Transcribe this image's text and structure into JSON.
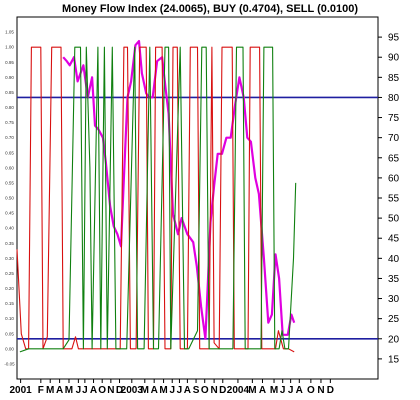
{
  "chart_data": {
    "type": "line",
    "title": "Money Flow Index (24.0065), BUY (0.4704), SELL (0.0100)",
    "y_right": {
      "range": [
        10,
        100
      ],
      "ticks": [
        "15",
        "20",
        "25",
        "30",
        "35",
        "40",
        "45",
        "50",
        "55",
        "60",
        "65",
        "70",
        "75",
        "80",
        "85",
        "90",
        "95"
      ]
    },
    "y_left": {
      "range": [
        -0.1,
        1.1
      ],
      "ticks": [
        "-0.05",
        "0.00",
        "0.05",
        "0.10",
        "0.15",
        "0.20",
        "0.25",
        "0.30",
        "0.35",
        "0.40",
        "0.45",
        "0.50",
        "0.55",
        "0.60",
        "0.65",
        "0.70",
        "0.75",
        "0.80",
        "0.85",
        "0.90",
        "0.95",
        "1.00",
        "1.05"
      ]
    },
    "x_axis": {
      "range": [
        0,
        50
      ],
      "ticks": [
        {
          "x": 0.5,
          "label": "2001"
        },
        {
          "x": 3.3,
          "label": "F"
        },
        {
          "x": 4.6,
          "label": "M"
        },
        {
          "x": 5.9,
          "label": "A"
        },
        {
          "x": 7.2,
          "label": "M"
        },
        {
          "x": 8.5,
          "label": "J"
        },
        {
          "x": 9.4,
          "label": "J"
        },
        {
          "x": 10.6,
          "label": "A"
        },
        {
          "x": 11.8,
          "label": "O"
        },
        {
          "x": 13.0,
          "label": "N"
        },
        {
          "x": 14.2,
          "label": "D"
        },
        {
          "x": 15.9,
          "label": "2003"
        },
        {
          "x": 17.7,
          "label": "M"
        },
        {
          "x": 19.0,
          "label": "A"
        },
        {
          "x": 20.3,
          "label": "M"
        },
        {
          "x": 21.5,
          "label": "J"
        },
        {
          "x": 22.5,
          "label": "J"
        },
        {
          "x": 23.6,
          "label": "A"
        },
        {
          "x": 24.8,
          "label": "S"
        },
        {
          "x": 26.0,
          "label": "O"
        },
        {
          "x": 27.3,
          "label": "N"
        },
        {
          "x": 28.5,
          "label": "D"
        },
        {
          "x": 30.6,
          "label": "2004"
        },
        {
          "x": 32.6,
          "label": "M"
        },
        {
          "x": 34.0,
          "label": "A"
        },
        {
          "x": 35.6,
          "label": "M"
        },
        {
          "x": 36.8,
          "label": "J"
        },
        {
          "x": 37.9,
          "label": "J"
        },
        {
          "x": 39.1,
          "label": "A"
        },
        {
          "x": 40.7,
          "label": "O"
        },
        {
          "x": 42.1,
          "label": "N"
        },
        {
          "x": 43.4,
          "label": "D"
        }
      ]
    },
    "reference_lines": [
      {
        "axis": "right",
        "value": 80,
        "color": "#1f1fa0"
      },
      {
        "axis": "right",
        "value": 20,
        "color": "#1f1fa0"
      }
    ],
    "grid": false,
    "series": [
      {
        "axis": "right",
        "color": "#e000e0",
        "points": [
          [
            6.4,
            90
          ],
          [
            6.9,
            89
          ],
          [
            7.3,
            88
          ],
          [
            7.9,
            90
          ],
          [
            8.4,
            84
          ],
          [
            9.2,
            88
          ],
          [
            9.8,
            80
          ],
          [
            10.4,
            85
          ],
          [
            10.8,
            73
          ],
          [
            11.3,
            72
          ],
          [
            11.9,
            70
          ],
          [
            12.3,
            64
          ],
          [
            12.9,
            53
          ],
          [
            13.4,
            48
          ],
          [
            13.9,
            46
          ],
          [
            14.4,
            43
          ],
          [
            14.8,
            60
          ],
          [
            15.3,
            80
          ],
          [
            15.8,
            84
          ],
          [
            16.4,
            93
          ],
          [
            16.9,
            94
          ],
          [
            17.3,
            86
          ],
          [
            17.9,
            81
          ],
          [
            18.3,
            80
          ],
          [
            18.8,
            80
          ],
          [
            19.4,
            89
          ],
          [
            20.1,
            90
          ],
          [
            20.6,
            82
          ],
          [
            21.0,
            76
          ],
          [
            21.6,
            51
          ],
          [
            22.3,
            46
          ],
          [
            22.8,
            50
          ],
          [
            23.6,
            46
          ],
          [
            24.4,
            44
          ],
          [
            24.9,
            38
          ],
          [
            25.5,
            28
          ],
          [
            26.1,
            20
          ],
          [
            26.8,
            49
          ],
          [
            27.3,
            58
          ],
          [
            27.8,
            66
          ],
          [
            28.4,
            66
          ],
          [
            29.0,
            70
          ],
          [
            29.6,
            70
          ],
          [
            30.2,
            78
          ],
          [
            30.8,
            85
          ],
          [
            31.4,
            80
          ],
          [
            31.9,
            70
          ],
          [
            32.4,
            69
          ],
          [
            33.0,
            60
          ],
          [
            33.5,
            56
          ],
          [
            34.2,
            40
          ],
          [
            34.8,
            24
          ],
          [
            35.3,
            26
          ],
          [
            35.8,
            41
          ],
          [
            36.3,
            35
          ],
          [
            36.8,
            21
          ],
          [
            37.5,
            21
          ],
          [
            38.0,
            26
          ],
          [
            38.4,
            24
          ]
        ]
      },
      {
        "axis": "left",
        "color": "#d81010",
        "points": [
          [
            0.0,
            0.33
          ],
          [
            0.6,
            0.05
          ],
          [
            1.2,
            0.0
          ],
          [
            1.6,
            0.0
          ],
          [
            2.0,
            1.0
          ],
          [
            3.3,
            1.0
          ],
          [
            3.6,
            0.0
          ],
          [
            4.2,
            0.04
          ],
          [
            4.8,
            1.0
          ],
          [
            6.1,
            1.0
          ],
          [
            6.4,
            0.0
          ],
          [
            7.6,
            0.0
          ],
          [
            8.1,
            0.04
          ],
          [
            8.5,
            0.0
          ],
          [
            10.4,
            0.0
          ],
          [
            10.9,
            0.0
          ],
          [
            12.4,
            0.0
          ],
          [
            12.9,
            0.0
          ],
          [
            13.8,
            0.0
          ],
          [
            14.3,
            0.0
          ],
          [
            14.8,
            1.0
          ],
          [
            15.3,
            1.0
          ],
          [
            15.7,
            0.0
          ],
          [
            16.5,
            0.0
          ],
          [
            17.0,
            1.0
          ],
          [
            17.9,
            1.0
          ],
          [
            18.2,
            0.0
          ],
          [
            18.9,
            0.0
          ],
          [
            19.2,
            1.0
          ],
          [
            20.1,
            1.0
          ],
          [
            20.5,
            0.0
          ],
          [
            21.3,
            0.0
          ],
          [
            21.6,
            1.0
          ],
          [
            22.2,
            1.0
          ],
          [
            22.6,
            0.0
          ],
          [
            23.6,
            0.0
          ],
          [
            24.0,
            1.0
          ],
          [
            25.0,
            1.0
          ],
          [
            25.3,
            0.0
          ],
          [
            26.6,
            0.0
          ],
          [
            27.0,
            1.0
          ],
          [
            27.3,
            0.02
          ],
          [
            28.0,
            0.0
          ],
          [
            28.4,
            1.0
          ],
          [
            29.8,
            1.0
          ],
          [
            30.1,
            0.0
          ],
          [
            32.0,
            0.0
          ],
          [
            32.3,
            1.0
          ],
          [
            33.6,
            1.0
          ],
          [
            33.9,
            0.0
          ],
          [
            35.8,
            0.0
          ],
          [
            36.2,
            0.06
          ],
          [
            36.9,
            0.0
          ],
          [
            37.3,
            0.0
          ],
          [
            37.6,
            0.0
          ],
          [
            38.4,
            -0.01
          ]
        ]
      },
      {
        "axis": "left",
        "color": "#108010",
        "points": [
          [
            0.4,
            -0.01
          ],
          [
            1.6,
            0.0
          ],
          [
            3.3,
            0.0
          ],
          [
            3.6,
            0.0
          ],
          [
            4.5,
            0.0
          ],
          [
            6.4,
            0.0
          ],
          [
            7.2,
            0.03
          ],
          [
            8.0,
            1.0
          ],
          [
            8.8,
            1.0
          ],
          [
            9.2,
            0.0
          ],
          [
            9.6,
            1.0
          ],
          [
            10.1,
            0.6
          ],
          [
            10.4,
            0.0
          ],
          [
            11.2,
            1.0
          ],
          [
            11.6,
            0.0
          ],
          [
            12.1,
            1.0
          ],
          [
            12.5,
            0.0
          ],
          [
            13.2,
            1.0
          ],
          [
            13.7,
            0.0
          ],
          [
            14.4,
            0.0
          ],
          [
            15.2,
            0.0
          ],
          [
            16.3,
            1.0
          ],
          [
            16.7,
            0.0
          ],
          [
            17.6,
            0.0
          ],
          [
            18.4,
            1.0
          ],
          [
            18.9,
            0.0
          ],
          [
            19.6,
            0.0
          ],
          [
            20.5,
            1.0
          ],
          [
            21.0,
            1.0
          ],
          [
            21.3,
            0.0
          ],
          [
            22.6,
            1.0
          ],
          [
            23.2,
            0.0
          ],
          [
            23.8,
            0.0
          ],
          [
            25.0,
            0.06
          ],
          [
            25.6,
            1.0
          ],
          [
            26.2,
            1.0
          ],
          [
            26.6,
            0.0
          ],
          [
            27.6,
            0.0
          ],
          [
            28.4,
            0.0
          ],
          [
            29.9,
            0.0
          ],
          [
            30.4,
            1.0
          ],
          [
            31.3,
            1.0
          ],
          [
            31.6,
            0.0
          ],
          [
            32.4,
            0.0
          ],
          [
            33.8,
            0.0
          ],
          [
            34.2,
            1.0
          ],
          [
            35.4,
            1.0
          ],
          [
            35.7,
            0.0
          ],
          [
            36.3,
            0.0
          ],
          [
            36.7,
            0.06
          ],
          [
            37.1,
            0.0
          ],
          [
            37.6,
            0.0
          ],
          [
            38.3,
            0.3
          ],
          [
            38.6,
            0.55
          ]
        ]
      }
    ]
  }
}
